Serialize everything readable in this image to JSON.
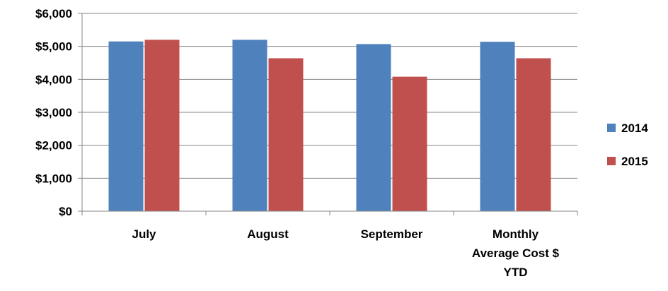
{
  "chart_data": {
    "type": "bar",
    "categories": [
      [
        "July"
      ],
      [
        "August"
      ],
      [
        "September"
      ],
      [
        "Monthly",
        "Average Cost $",
        "YTD"
      ]
    ],
    "series": [
      {
        "name": "2014",
        "color": "#4F81BD",
        "values": [
          5150,
          5200,
          5070,
          5140
        ]
      },
      {
        "name": "2015",
        "color": "#C0504D",
        "values": [
          5200,
          4640,
          4080,
          4640
        ]
      }
    ],
    "yticks": [
      "$0",
      "$1,000",
      "$2,000",
      "$3,000",
      "$4,000",
      "$5,000",
      "$6,000"
    ],
    "ylim": [
      0,
      6000
    ],
    "grid": true,
    "legend_position": "right"
  }
}
